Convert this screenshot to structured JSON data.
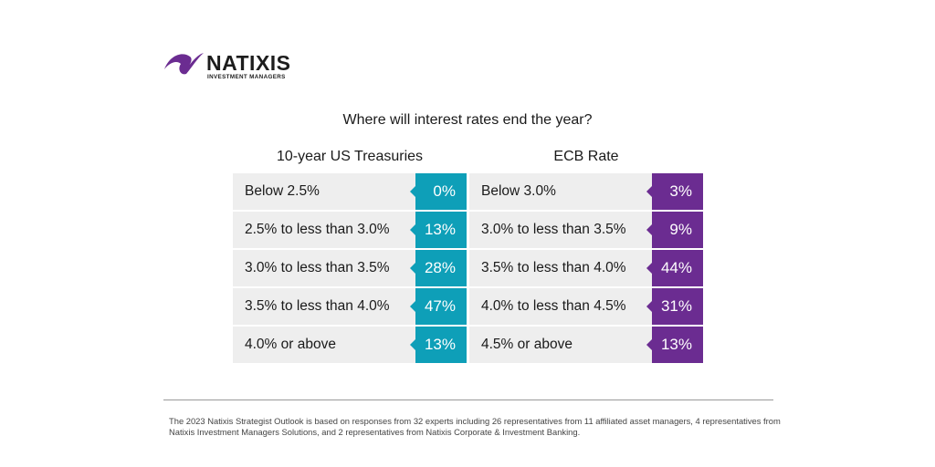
{
  "logo": {
    "brand": "NATIXIS",
    "sub": "INVESTMENT MANAGERS",
    "color": "#6b2c91"
  },
  "chart_data": {
    "type": "table",
    "title": "Where will interest rates end the year?",
    "panels": [
      {
        "name": "10-year US Treasuries",
        "color": "#0e9fb8",
        "rows": [
          {
            "label": "Below 2.5%",
            "value": "0%"
          },
          {
            "label": "2.5% to less than 3.0%",
            "value": "13%"
          },
          {
            "label": "3.0% to less than 3.5%",
            "value": "28%"
          },
          {
            "label": "3.5% to less than 4.0%",
            "value": "47%"
          },
          {
            "label": "4.0% or above",
            "value": "13%"
          }
        ]
      },
      {
        "name": "ECB Rate",
        "color": "#6b2c91",
        "rows": [
          {
            "label": "Below 3.0%",
            "value": "3%"
          },
          {
            "label": "3.0% to less than 3.5%",
            "value": "9%"
          },
          {
            "label": "3.5% to less than 4.0%",
            "value": "44%"
          },
          {
            "label": "4.0% to less than 4.5%",
            "value": "31%"
          },
          {
            "label": "4.5% or above",
            "value": "13%"
          }
        ]
      }
    ]
  },
  "footnote": "The 2023 Natixis Strategist Outlook is based on responses from 32 experts including 26 representatives from 11 affiliated asset managers, 4 representatives from Natixis Investment Managers Solutions, and 2 representatives from Natixis Corporate & Investment Banking."
}
